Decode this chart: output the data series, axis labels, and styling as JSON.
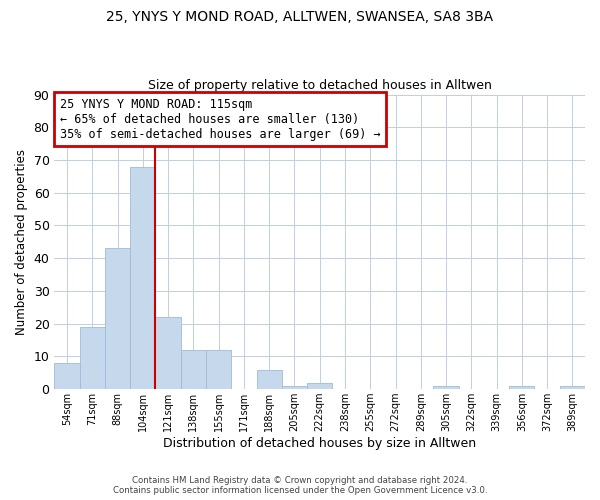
{
  "title1": "25, YNYS Y MOND ROAD, ALLTWEN, SWANSEA, SA8 3BA",
  "title2": "Size of property relative to detached houses in Alltwen",
  "xlabel": "Distribution of detached houses by size in Alltwen",
  "ylabel": "Number of detached properties",
  "bar_color": "#c5d8ec",
  "bar_edgecolor": "#9dbcd8",
  "categories": [
    "54sqm",
    "71sqm",
    "88sqm",
    "104sqm",
    "121sqm",
    "138sqm",
    "155sqm",
    "171sqm",
    "188sqm",
    "205sqm",
    "222sqm",
    "238sqm",
    "255sqm",
    "272sqm",
    "289sqm",
    "305sqm",
    "322sqm",
    "339sqm",
    "356sqm",
    "372sqm",
    "389sqm"
  ],
  "values": [
    8,
    19,
    43,
    68,
    22,
    12,
    12,
    0,
    6,
    1,
    2,
    0,
    0,
    0,
    0,
    1,
    0,
    0,
    1,
    0,
    1
  ],
  "ylim": [
    0,
    90
  ],
  "yticks": [
    0,
    10,
    20,
    30,
    40,
    50,
    60,
    70,
    80,
    90
  ],
  "red_line_bar_index": 4,
  "annotation_title": "25 YNYS Y MOND ROAD: 115sqm",
  "annotation_line1": "← 65% of detached houses are smaller (130)",
  "annotation_line2": "35% of semi-detached houses are larger (69) →",
  "annotation_box_color": "#ffffff",
  "annotation_box_edgecolor": "#cc0000",
  "footer1": "Contains HM Land Registry data © Crown copyright and database right 2024.",
  "footer2": "Contains public sector information licensed under the Open Government Licence v3.0."
}
